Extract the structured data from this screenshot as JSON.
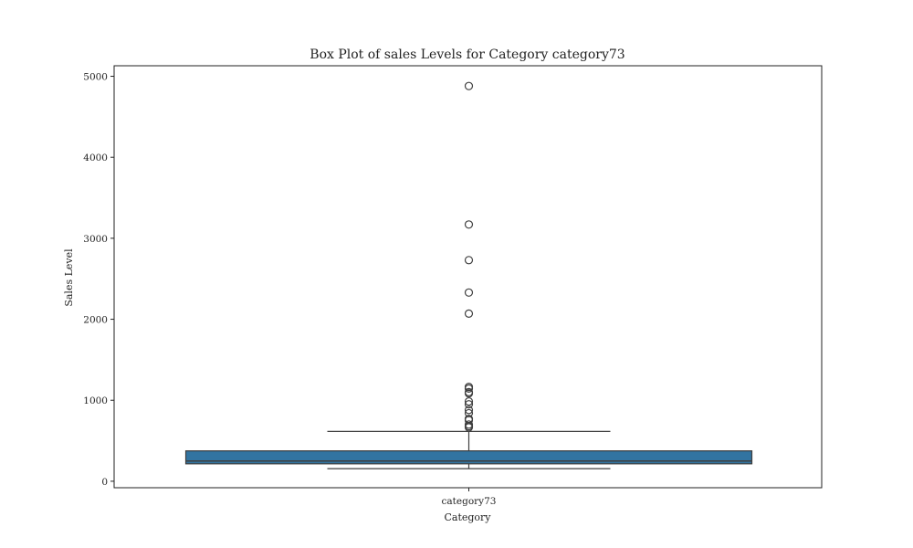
{
  "chart_data": {
    "type": "box",
    "title": "Box Plot of sales Levels for Category category73",
    "xlabel": "Category",
    "ylabel": "Sales Level",
    "categories": [
      "category73"
    ],
    "ylim": [
      -80,
      5130
    ],
    "yticks": [
      0,
      1000,
      2000,
      3000,
      4000,
      5000
    ],
    "grid": false,
    "legend": "none",
    "box": {
      "category": "category73",
      "whisker_low": 155,
      "q1": 215,
      "median": 250,
      "q3": 375,
      "whisker_high": 615
    },
    "outliers": [
      4880,
      3170,
      2730,
      2330,
      2070,
      1165,
      1145,
      1100,
      1085,
      985,
      950,
      880,
      840,
      770,
      755,
      700,
      680,
      665
    ],
    "colors": {
      "box_fill": "#3274a1",
      "line": "#3f3f3f",
      "outlier_edge": "#3f3f3f",
      "outlier_fill": "none",
      "frame": "#222222"
    }
  }
}
